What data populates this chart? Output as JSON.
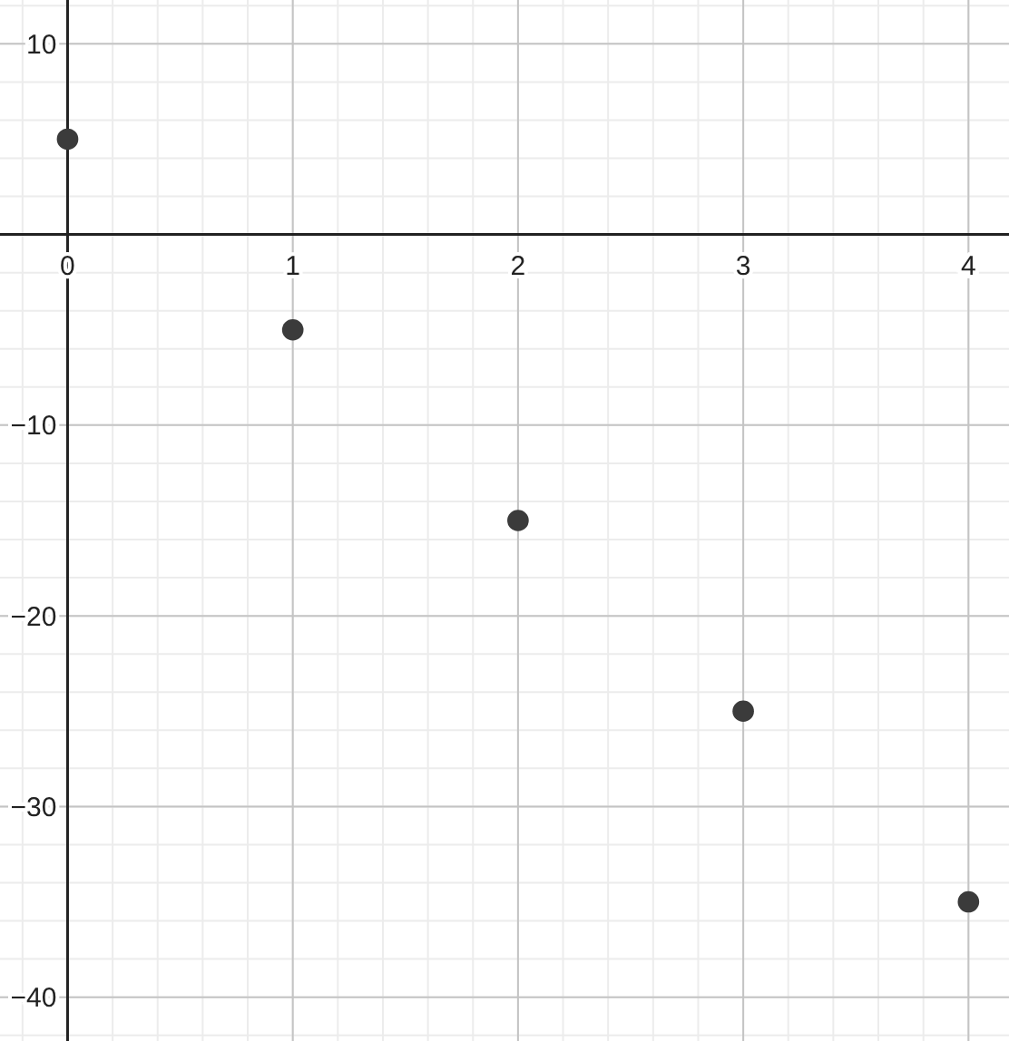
{
  "chart_data": {
    "type": "scatter",
    "x": [
      0,
      1,
      2,
      3,
      4
    ],
    "series": [
      {
        "color": "#3b3b3b",
        "values": [
          5,
          -5,
          -15,
          -25,
          -35
        ]
      }
    ],
    "xlim": [
      -0.3,
      4.18
    ],
    "ylim": [
      -42.3,
      12.3
    ],
    "xticks": [
      0,
      1,
      2,
      3,
      4
    ],
    "yticks": [
      {
        "value": -40,
        "label": "−40"
      },
      {
        "value": -30,
        "label": "−30"
      },
      {
        "value": -20,
        "label": "−20"
      },
      {
        "value": -10,
        "label": "−10"
      },
      10
    ],
    "grid": true,
    "marker": "circle"
  }
}
